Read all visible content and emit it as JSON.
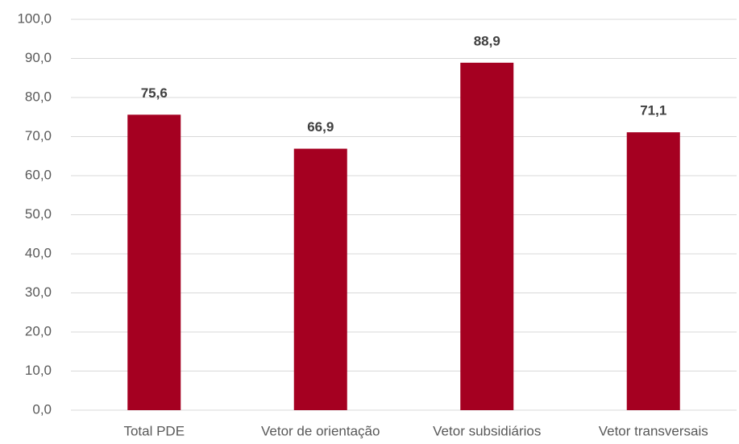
{
  "chart_data": {
    "type": "bar",
    "categories": [
      "Total PDE",
      "Vetor de orientação",
      "Vetor subsidiários",
      "Vetor transversais"
    ],
    "values": [
      75.6,
      66.9,
      88.9,
      71.1
    ],
    "value_labels": [
      "75,6",
      "66,9",
      "88,9",
      "71,1"
    ],
    "color": "#a50021",
    "ylim": [
      0,
      100
    ],
    "yticks": [
      {
        "value": 0,
        "label": "0,0"
      },
      {
        "value": 10,
        "label": "10,0"
      },
      {
        "value": 20,
        "label": "20,0"
      },
      {
        "value": 30,
        "label": "30,0"
      },
      {
        "value": 40,
        "label": "40,0"
      },
      {
        "value": 50,
        "label": "50,0"
      },
      {
        "value": 60,
        "label": "60,0"
      },
      {
        "value": 70,
        "label": "70,0"
      },
      {
        "value": 80,
        "label": "80,0"
      },
      {
        "value": 90,
        "label": "90,0"
      },
      {
        "value": 100,
        "label": "100,0"
      }
    ],
    "grid": true
  }
}
